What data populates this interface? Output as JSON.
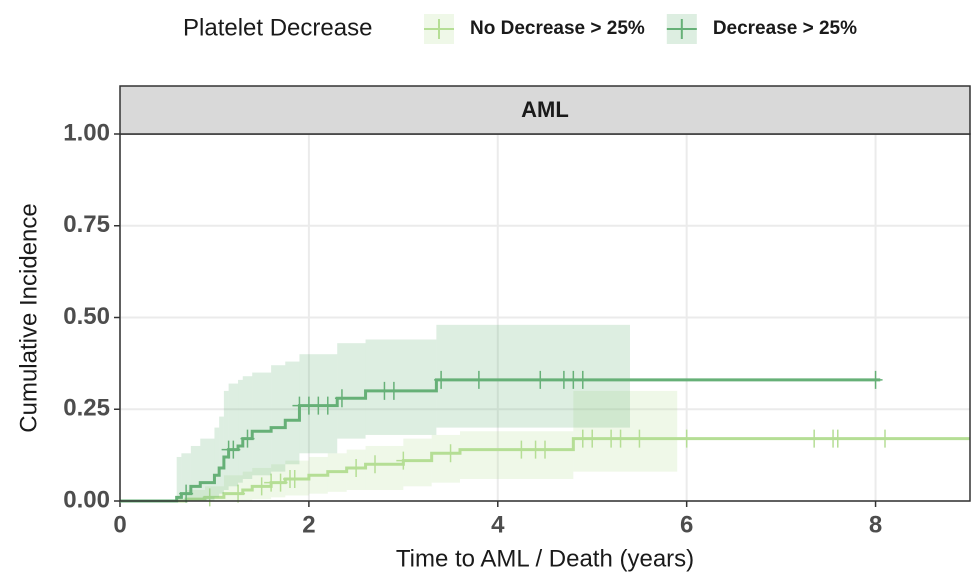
{
  "chart_data": {
    "type": "cumulative-incidence",
    "facet": "AML",
    "legend_title": "Platelet Decrease",
    "legend_position": "top",
    "x_label": "Time to AML / Death (years)",
    "y_label": "Cumulative Incidence",
    "xlim": [
      0,
      9
    ],
    "xticks": [
      0,
      2,
      4,
      6,
      8
    ],
    "ylim": [
      0,
      1
    ],
    "yticks": [
      {
        "value": 0,
        "label": "0.00"
      },
      {
        "value": 0.25,
        "label": "0.25"
      },
      {
        "value": 0.5,
        "label": "0.50"
      },
      {
        "value": 0.75,
        "label": "0.75"
      },
      {
        "value": 1,
        "label": "1.00"
      }
    ],
    "grid": true,
    "series": [
      {
        "name": "No Decrease > 25%",
        "color": "#b5de95",
        "x": [
          0,
          0.7,
          0.9,
          1.1,
          1.3,
          1.4,
          1.6,
          1.75,
          2.0,
          2.2,
          2.4,
          2.6,
          3.0,
          3.3,
          3.6,
          4.8,
          5.9,
          9
        ],
        "values": [
          0,
          0.005,
          0.01,
          0.02,
          0.03,
          0.04,
          0.05,
          0.06,
          0.07,
          0.08,
          0.09,
          0.1,
          0.11,
          0.13,
          0.14,
          0.17,
          0.17,
          0.17
        ],
        "lower": [
          0,
          0,
          0,
          0,
          0,
          0.005,
          0.01,
          0.015,
          0.02,
          0.025,
          0.03,
          0.03,
          0.04,
          0.05,
          0.06,
          0.08,
          null,
          null
        ],
        "upper": [
          0,
          0.03,
          0.04,
          0.07,
          0.08,
          0.09,
          0.1,
          0.11,
          0.12,
          0.13,
          0.14,
          0.15,
          0.17,
          0.18,
          0.19,
          0.3,
          null,
          null
        ],
        "censor_x": [
          0.95,
          1.25,
          1.5,
          1.6,
          1.7,
          1.8,
          1.85,
          2.5,
          2.7,
          3.0,
          3.5,
          4.25,
          4.4,
          4.5,
          4.9,
          5.0,
          5.2,
          5.3,
          5.5,
          6.0,
          7.35,
          7.55,
          7.6,
          8.1
        ],
        "censor_y": [
          0.01,
          0.02,
          0.04,
          0.05,
          0.05,
          0.06,
          0.06,
          0.09,
          0.1,
          0.11,
          0.13,
          0.14,
          0.14,
          0.14,
          0.17,
          0.17,
          0.17,
          0.17,
          0.17,
          0.17,
          0.17,
          0.17,
          0.17,
          0.17
        ]
      },
      {
        "name": "Decrease > 25%",
        "color": "#66b077",
        "x": [
          0,
          0.6,
          0.65,
          0.75,
          0.85,
          1.0,
          1.05,
          1.1,
          1.15,
          1.25,
          1.3,
          1.4,
          1.6,
          1.75,
          1.9,
          2.3,
          2.6,
          3.35,
          5.4,
          8.05
        ],
        "values": [
          0,
          0.01,
          0.02,
          0.04,
          0.05,
          0.07,
          0.09,
          0.12,
          0.14,
          0.15,
          0.17,
          0.19,
          0.2,
          0.22,
          0.26,
          0.28,
          0.3,
          0.33,
          0.33,
          0.33
        ],
        "lower": [
          0,
          0,
          0,
          0,
          0,
          0.01,
          0.02,
          0.03,
          0.04,
          0.05,
          0.06,
          0.07,
          0.08,
          0.1,
          0.13,
          0.17,
          0.18,
          0.2,
          null,
          null
        ],
        "upper": [
          0,
          0.12,
          0.13,
          0.15,
          0.17,
          0.2,
          0.23,
          0.3,
          0.32,
          0.33,
          0.34,
          0.35,
          0.37,
          0.38,
          0.4,
          0.43,
          0.44,
          0.48,
          null,
          null
        ],
        "censor_x": [
          0.7,
          1.15,
          1.2,
          1.35,
          1.9,
          2.0,
          2.1,
          2.2,
          2.35,
          2.8,
          2.9,
          3.4,
          3.8,
          4.45,
          4.7,
          4.8,
          4.9,
          8.0
        ],
        "censor_y": [
          0.02,
          0.14,
          0.14,
          0.17,
          0.26,
          0.26,
          0.26,
          0.26,
          0.28,
          0.3,
          0.3,
          0.33,
          0.33,
          0.33,
          0.33,
          0.33,
          0.33,
          0.33
        ]
      }
    ]
  }
}
